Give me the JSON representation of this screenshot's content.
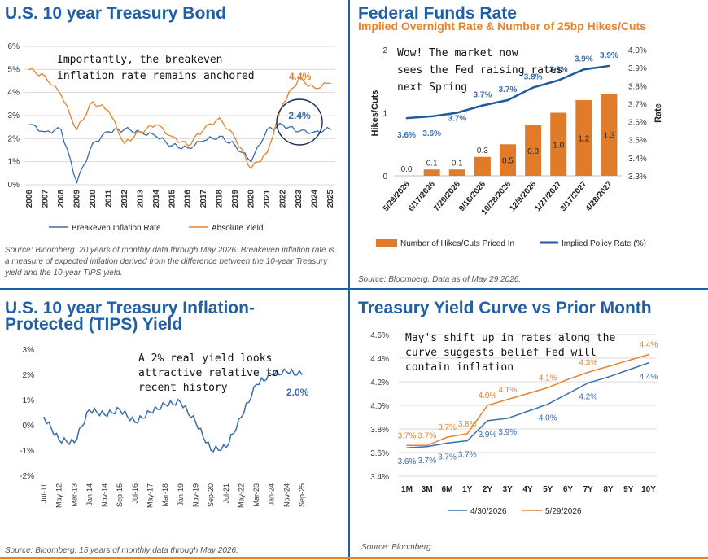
{
  "tl": {
    "title": "U.S. 10 year Treasury Bond",
    "source": "Source: Bloomberg. 20 years of monthly data through May 2026. Breakeven inflation rate is a measure of expected inflation derived from the difference between the 10-year Treasury yield and the 10-year TIPS yield.",
    "annotation": [
      "Importantly, the breakeven",
      "inflation rate remains anchored"
    ],
    "callout_orange": "4.4%",
    "callout_blue": "2.4%"
  },
  "tr": {
    "title": "Federal Funds Rate",
    "subtitle": "Implied Overnight Rate & Number of 25bp Hikes/Cuts",
    "source": "Source: Bloomberg. Data as of May 29 2026.",
    "annotation": [
      "Wow! The market now",
      "sees the Fed raising rates",
      "next Spring"
    ]
  },
  "bl": {
    "title_line1": "U.S. 10 year Treasury Inflation-",
    "title_line2": "Protected (TIPS) Yield",
    "source": "Source: Bloomberg. 15 years of monthly data through May 2026.",
    "annotation": [
      "A 2% real yield looks",
      "attractive relative to",
      "recent history"
    ],
    "callout": "2.0%"
  },
  "br": {
    "title": "Treasury Yield Curve vs Prior Month",
    "source": "Source: Bloomberg.",
    "annotation": [
      "May's shift up in rates along the",
      "curve suggests belief Fed will",
      "contain inflation"
    ]
  },
  "colors": {
    "blue": "#3a6eaa",
    "orange": "#e8822c",
    "navy": "#1f5fa6",
    "bar": "#e07b2a",
    "policy": "#1f5aa0"
  },
  "chart_data": [
    {
      "id": "tl",
      "type": "line",
      "title": "U.S. 10 year Treasury Bond",
      "x": [
        2006,
        2007,
        2008,
        2009,
        2010,
        2011,
        2012,
        2013,
        2014,
        2015,
        2016,
        2017,
        2018,
        2019,
        2020,
        2021,
        2022,
        2023,
        2024,
        2025
      ],
      "ylim": [
        0,
        6
      ],
      "yticks": [
        "0%",
        "1%",
        "2%",
        "3%",
        "4%",
        "5%",
        "6%"
      ],
      "series": [
        {
          "name": "Breakeven Inflation Rate",
          "values": [
            2.6,
            2.3,
            2.4,
            0.1,
            1.8,
            2.3,
            2.4,
            2.3,
            2.1,
            1.7,
            1.6,
            1.9,
            2.1,
            1.7,
            1.0,
            2.4,
            2.6,
            2.3,
            2.3,
            2.4
          ]
        },
        {
          "name": "Absolute Yield",
          "values": [
            5.0,
            4.7,
            3.9,
            2.4,
            3.6,
            3.2,
            1.8,
            2.3,
            2.6,
            2.1,
            1.7,
            2.4,
            2.9,
            2.0,
            0.7,
            1.4,
            3.5,
            4.6,
            4.2,
            4.4
          ]
        }
      ]
    },
    {
      "id": "tr",
      "type": "bar",
      "title": "Federal Funds Rate",
      "categories": [
        "5/29/2026",
        "6/17/2026",
        "7/29/2026",
        "9/16/2026",
        "10/28/2026",
        "12/9/2026",
        "1/27/2027",
        "3/17/2027",
        "4/28/2027"
      ],
      "ylabel": "Hikes/Cuts",
      "y2label": "Rate",
      "ylim": [
        0,
        2
      ],
      "y2lim": [
        3.3,
        4.0
      ],
      "yticks": [
        "0",
        "1",
        "2"
      ],
      "y2ticks": [
        "3.3%",
        "3.4%",
        "3.5%",
        "3.6%",
        "3.7%",
        "3.8%",
        "3.9%",
        "4.0%"
      ],
      "series": [
        {
          "name": "Number of Hikes/Cuts Priced In",
          "values": [
            0.0,
            0.1,
            0.1,
            0.3,
            0.5,
            0.8,
            1.0,
            1.2,
            1.3
          ],
          "labels": [
            "0.0",
            "0.1",
            "0.1",
            "0.3",
            "0.5",
            "0.8",
            "1.0",
            "1.2",
            "1.3"
          ]
        },
        {
          "name": "Implied Policy Rate (%)",
          "values": [
            3.6,
            3.6,
            3.7,
            3.7,
            3.7,
            3.8,
            3.9,
            3.9,
            3.9
          ],
          "labels": [
            "3.6%",
            "3.6%",
            "3.7%",
            "3.7%",
            "3.7%",
            "3.8%",
            "3.9%",
            "3.9%",
            "3.9%"
          ]
        }
      ]
    },
    {
      "id": "bl",
      "type": "line",
      "title": "U.S. 10 year Treasury Inflation-Protected (TIPS) Yield",
      "categories": [
        "Jul-11",
        "May-12",
        "Mar-13",
        "Jan-14",
        "Nov-14",
        "Sep-15",
        "Jul-16",
        "May-17",
        "Mar-18",
        "Jan-19",
        "Nov-19",
        "Sep-20",
        "Jul-21",
        "May-22",
        "Mar-23",
        "Jan-24",
        "Nov-24",
        "Sep-25"
      ],
      "ylim": [
        -2,
        3
      ],
      "yticks": [
        "-2%",
        "-1%",
        "0%",
        "1%",
        "2%",
        "3%"
      ],
      "series": [
        {
          "name": "TIPS Yield",
          "values": [
            0.3,
            -0.6,
            -0.7,
            0.6,
            0.4,
            0.6,
            0.1,
            0.5,
            0.8,
            0.9,
            0.1,
            -1.0,
            -0.9,
            0.3,
            1.6,
            2.0,
            2.1,
            2.0
          ]
        }
      ]
    },
    {
      "id": "br",
      "type": "line",
      "title": "Treasury Yield Curve vs Prior Month",
      "categories": [
        "1M",
        "3M",
        "6M",
        "1Y",
        "2Y",
        "3Y",
        "4Y",
        "5Y",
        "6Y",
        "7Y",
        "8Y",
        "9Y",
        "10Y"
      ],
      "ylim": [
        3.4,
        4.6
      ],
      "yticks": [
        "3.4%",
        "3.6%",
        "3.8%",
        "4.0%",
        "4.2%",
        "4.4%",
        "4.6%"
      ],
      "series": [
        {
          "name": "4/30/2026",
          "values": [
            3.64,
            3.65,
            3.68,
            3.7,
            3.87,
            3.89,
            3.95,
            4.01,
            4.1,
            4.19,
            4.24,
            4.3,
            4.36
          ],
          "labels": [
            "3.6%",
            "3.7%",
            "3.7%",
            "3.7%",
            "3.9%",
            "3.9%",
            null,
            "4.0%",
            null,
            "4.2%",
            null,
            null,
            "4.4%"
          ]
        },
        {
          "name": "5/29/2026",
          "values": [
            3.66,
            3.66,
            3.73,
            3.76,
            4.0,
            4.05,
            4.1,
            4.15,
            4.22,
            4.28,
            4.33,
            4.38,
            4.43
          ],
          "labels": [
            "3.7%",
            "3.7%",
            "3.7%",
            "3.8%",
            "4.0%",
            "4.1%",
            null,
            "4.1%",
            null,
            "4.3%",
            null,
            null,
            "4.4%"
          ]
        }
      ]
    }
  ]
}
